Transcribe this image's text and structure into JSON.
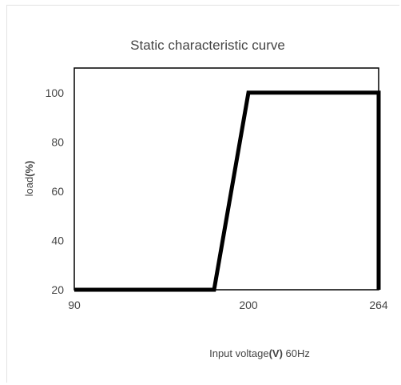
{
  "chart_data": {
    "type": "line",
    "title": "Static characteristic curve",
    "ylabel": {
      "prefix": "load",
      "unit": "(%)"
    },
    "xlabel": {
      "prefix": "Input voltage",
      "unit": "(V)",
      "suffix": "  60Hz"
    },
    "x_tick_labels": [
      "90",
      "200",
      "264"
    ],
    "y_tick_labels": [
      "20",
      "40",
      "60",
      "80",
      "100"
    ],
    "series": [
      {
        "x": [
          "90",
          "175",
          "200",
          "264",
          "264"
        ],
        "y": [
          20,
          20,
          100,
          100,
          20
        ]
      }
    ],
    "ylim": [
      20,
      110
    ],
    "grid": false,
    "legend": "none"
  },
  "colors": {
    "line": "#000000",
    "frame": "#000000",
    "text": "#444444"
  }
}
